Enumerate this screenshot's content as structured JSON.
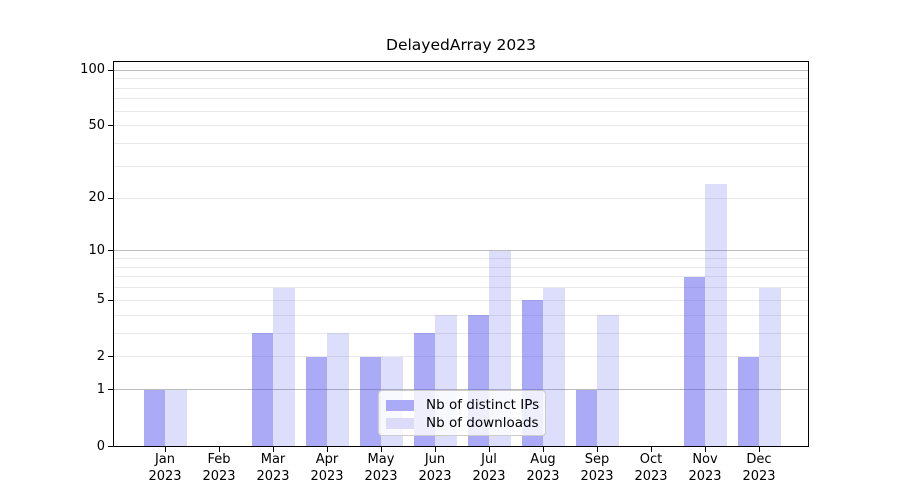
{
  "chart_data": {
    "type": "bar",
    "title": "DelayedArray 2023",
    "categories": [
      "Jan",
      "Feb",
      "Mar",
      "Apr",
      "May",
      "Jun",
      "Jul",
      "Aug",
      "Sep",
      "Oct",
      "Nov",
      "Dec"
    ],
    "year_label": "2023",
    "series": [
      {
        "name": "Nb of distinct IPs",
        "color": "rgba(85,85,238,0.5)",
        "solid_color": "#aaaaf6",
        "values": [
          1,
          0,
          3,
          2,
          2,
          3,
          4,
          5,
          1,
          0,
          7,
          2
        ]
      },
      {
        "name": "Nb of downloads",
        "color": "rgba(85,85,238,0.2)",
        "solid_color": "#dcdcfa",
        "values": [
          1,
          0,
          6,
          3,
          2,
          4,
          10,
          6,
          4,
          0,
          24,
          6
        ]
      }
    ],
    "y_axis": {
      "scale": "log1p",
      "tick_values": [
        0,
        1,
        2,
        5,
        10,
        20,
        50,
        100
      ],
      "tick_labels": [
        "0",
        "1",
        "2",
        "5",
        "10",
        "20",
        "50",
        "100"
      ],
      "major_gridlines": [
        1,
        10,
        100
      ],
      "minor_gridlines": [
        2,
        3,
        4,
        5,
        6,
        7,
        8,
        9,
        20,
        30,
        40,
        50,
        60,
        70,
        80,
        90
      ],
      "ylim": [
        0,
        112
      ]
    },
    "legend": {
      "position": "lower center"
    },
    "grid": "on",
    "colors": {
      "major_grid": "#bbbbbb",
      "minor_grid": "#e9e9e9",
      "axis": "#000000",
      "background": "#ffffff"
    }
  }
}
